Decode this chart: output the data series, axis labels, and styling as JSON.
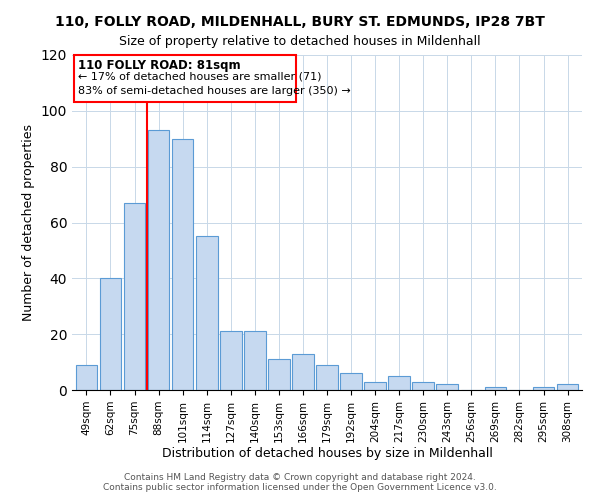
{
  "title": "110, FOLLY ROAD, MILDENHALL, BURY ST. EDMUNDS, IP28 7BT",
  "subtitle": "Size of property relative to detached houses in Mildenhall",
  "xlabel": "Distribution of detached houses by size in Mildenhall",
  "ylabel": "Number of detached properties",
  "bar_labels": [
    "49sqm",
    "62sqm",
    "75sqm",
    "88sqm",
    "101sqm",
    "114sqm",
    "127sqm",
    "140sqm",
    "153sqm",
    "166sqm",
    "179sqm",
    "192sqm",
    "204sqm",
    "217sqm",
    "230sqm",
    "243sqm",
    "256sqm",
    "269sqm",
    "282sqm",
    "295sqm",
    "308sqm"
  ],
  "bar_values": [
    9,
    40,
    67,
    93,
    90,
    55,
    21,
    21,
    11,
    13,
    9,
    6,
    3,
    5,
    3,
    2,
    0,
    1,
    0,
    1,
    2
  ],
  "bar_color": "#c6d9f0",
  "bar_edge_color": "#5b9bd5",
  "vline_color": "red",
  "vline_index": 2.5,
  "annotation_title": "110 FOLLY ROAD: 81sqm",
  "annotation_line1": "← 17% of detached houses are smaller (71)",
  "annotation_line2": "83% of semi-detached houses are larger (350) →",
  "box_color": "red",
  "ylim": [
    0,
    120
  ],
  "yticks": [
    0,
    20,
    40,
    60,
    80,
    100,
    120
  ],
  "title_fontsize": 10,
  "subtitle_fontsize": 9,
  "footer1": "Contains HM Land Registry data © Crown copyright and database right 2024.",
  "footer2": "Contains public sector information licensed under the Open Government Licence v3.0."
}
